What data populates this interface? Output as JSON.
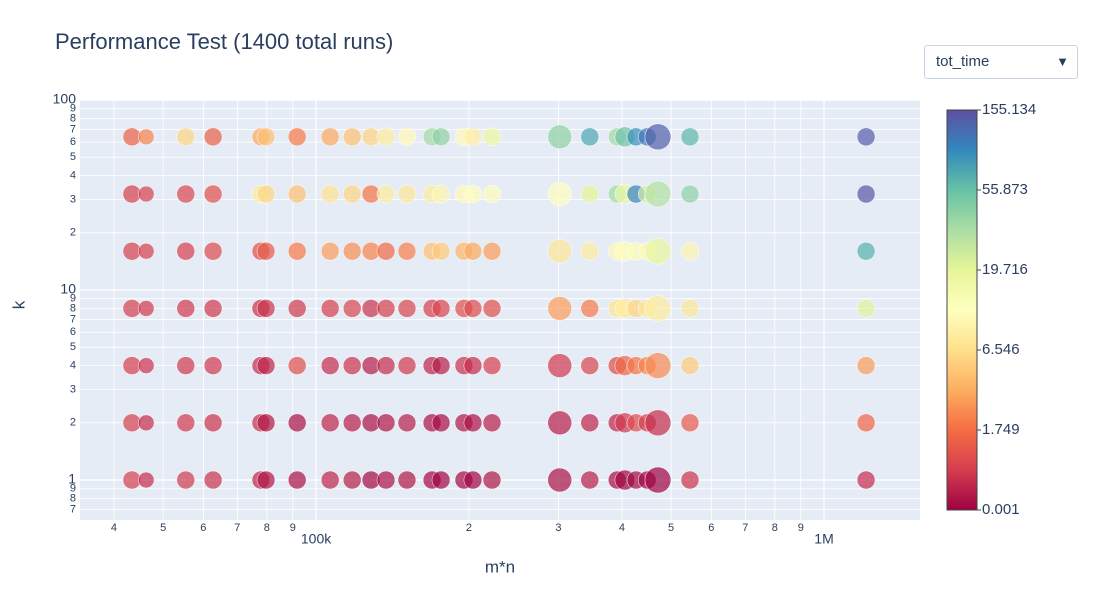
{
  "chart_data": {
    "type": "scatter",
    "title": "Performance Test (1400 total runs)",
    "xaxis_title": "m*n",
    "yaxis_title": "k",
    "xlog": true,
    "ylog": true,
    "grid": true,
    "dropdown": {
      "label": "tot_time"
    },
    "xlim": [
      34300,
      1545000
    ],
    "ylim": [
      0.616,
      100
    ],
    "xticks": [
      {
        "value": 40000,
        "label": "4"
      },
      {
        "value": 50000,
        "label": "5"
      },
      {
        "value": 60000,
        "label": "6"
      },
      {
        "value": 70000,
        "label": "7"
      },
      {
        "value": 80000,
        "label": "8"
      },
      {
        "value": 90000,
        "label": "9"
      },
      {
        "value": 100000,
        "label": "100k"
      },
      {
        "value": 200000,
        "label": "2"
      },
      {
        "value": 300000,
        "label": "3"
      },
      {
        "value": 400000,
        "label": "4"
      },
      {
        "value": 500000,
        "label": "5"
      },
      {
        "value": 600000,
        "label": "6"
      },
      {
        "value": 700000,
        "label": "7"
      },
      {
        "value": 800000,
        "label": "8"
      },
      {
        "value": 900000,
        "label": "9"
      },
      {
        "value": 1000000,
        "label": "1M"
      }
    ],
    "yticks": [
      {
        "value": 0.7,
        "label": "7"
      },
      {
        "value": 0.8,
        "label": "8"
      },
      {
        "value": 0.9,
        "label": "9"
      },
      1,
      2,
      3,
      4,
      5,
      6,
      7,
      8,
      9,
      10,
      {
        "value": 20,
        "label": "2"
      },
      {
        "value": 30,
        "label": "3"
      },
      {
        "value": 40,
        "label": "4"
      },
      {
        "value": 50,
        "label": "5"
      },
      {
        "value": 60,
        "label": "6"
      },
      {
        "value": 70,
        "label": "7"
      },
      {
        "value": 80,
        "label": "8"
      },
      {
        "value": 90,
        "label": "9"
      },
      100
    ],
    "colorscale": [
      "#9e0142",
      "#d53e4f",
      "#f46d43",
      "#fdae61",
      "#fee08b",
      "#ffffbf",
      "#e6f598",
      "#abdda4",
      "#66c2a5",
      "#3288bd",
      "#5e4fa2"
    ],
    "colorbar_ticks": [
      0.001,
      1.749,
      6.546,
      19.716,
      55.873,
      155.134
    ],
    "x": [
      43400,
      46300,
      55400,
      62700,
      77900,
      79700,
      91800,
      106600,
      117800,
      128300,
      137300,
      151000,
      169200,
      176200,
      195500,
      203600,
      222000,
      301800,
      345800,
      391600,
      405500,
      426400,
      448700,
      471000,
      544600,
      1210000
    ],
    "sizes": [
      18,
      16,
      18,
      18,
      18,
      18,
      18,
      18,
      18,
      18,
      18,
      18,
      18,
      18,
      18,
      18,
      18,
      24,
      18,
      18,
      20,
      18,
      18,
      26,
      18,
      18
    ],
    "rows": [
      {
        "k": 1,
        "tot_time": [
          0.9,
          0.6,
          0.8,
          0.7,
          0.5,
          0.3,
          0.2,
          0.5,
          0.4,
          0.1,
          0.2,
          0.3,
          0.1,
          0.05,
          0.1,
          0.05,
          0.3,
          0.2,
          0.4,
          0.15,
          0.05,
          0.1,
          0.08,
          0.02,
          0.7,
          0.6
        ]
      },
      {
        "k": 2,
        "tot_time": [
          0.9,
          0.6,
          0.8,
          0.7,
          0.6,
          0.3,
          0.2,
          0.5,
          0.4,
          0.2,
          0.3,
          0.4,
          0.2,
          0.15,
          0.3,
          0.2,
          0.4,
          0.4,
          0.5,
          0.5,
          0.8,
          1.1,
          0.9,
          0.6,
          1.4,
          1.6
        ]
      },
      {
        "k": 4,
        "tot_time": [
          0.9,
          0.7,
          0.8,
          0.8,
          0.6,
          0.5,
          1.2,
          0.6,
          0.7,
          0.4,
          0.6,
          0.8,
          0.5,
          0.4,
          0.7,
          0.6,
          0.9,
          0.8,
          1,
          1.1,
          1.6,
          2,
          2.5,
          2.8,
          5.5,
          3.5
        ]
      },
      {
        "k": 8,
        "tot_time": [
          0.9,
          0.8,
          0.8,
          0.8,
          0.7,
          0.7,
          0.8,
          0.9,
          1,
          0.7,
          0.9,
          1,
          0.9,
          1,
          1.2,
          1.1,
          1.2,
          3.5,
          2.2,
          7.5,
          9,
          6,
          8,
          9,
          8,
          22
        ]
      },
      {
        "k": 16,
        "tot_time": [
          0.9,
          0.9,
          0.9,
          1.1,
          1.2,
          1.4,
          2.2,
          3.5,
          3,
          2.5,
          1.7,
          2.4,
          5,
          5.5,
          4.5,
          4,
          3.5,
          8,
          9,
          12,
          13,
          14,
          12,
          19,
          11,
          70
        ]
      },
      {
        "k": 32,
        "tot_time": [
          0.9,
          0.9,
          1,
          1.2,
          9,
          6,
          5,
          7,
          6,
          2,
          9,
          8,
          9,
          11,
          12,
          13,
          14,
          13,
          20,
          40,
          18,
          110,
          25,
          35,
          45,
          150
        ]
      },
      {
        "k": 64,
        "tot_time": [
          1.5,
          2.5,
          6,
          1.5,
          4,
          5,
          2.2,
          4,
          5,
          6,
          9,
          12,
          40,
          45,
          12,
          10,
          18,
          45,
          80,
          40,
          55,
          100,
          120,
          140,
          65,
          145
        ]
      }
    ]
  }
}
